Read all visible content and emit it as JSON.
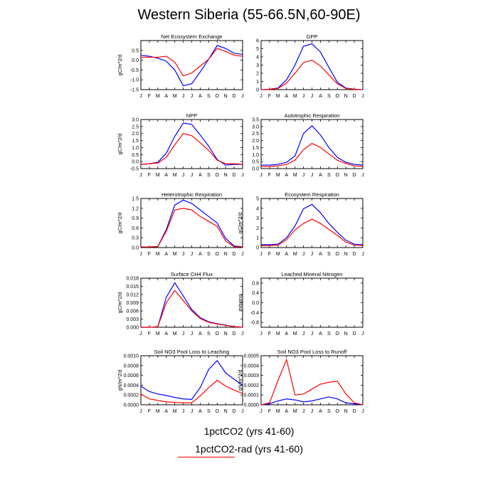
{
  "figure": {
    "title": "Western Siberia (55-66.5N,60-90E)",
    "legend": [
      {
        "label": "1pctCO2 (yrs 41-60)",
        "color": "#0000ff"
      },
      {
        "label": "1pctCO2-rad (yrs 41-60)",
        "color": "#ff0000"
      }
    ]
  },
  "chart_data": [
    {
      "type": "line",
      "title": "Net Ecosystem Exchange",
      "ylabel": "gC/m^2/d",
      "categories": [
        "J",
        "F",
        "M",
        "A",
        "M",
        "J",
        "J",
        "A",
        "S",
        "O",
        "N",
        "D",
        "J"
      ],
      "ylim": [
        -1.5,
        1.0
      ],
      "yticks": [
        -1.5,
        -1.0,
        -0.5,
        0.0,
        0.5
      ],
      "series": [
        {
          "values": [
            0.25,
            0.2,
            0.1,
            -0.05,
            -0.5,
            -1.3,
            -1.2,
            -0.6,
            0.05,
            0.75,
            0.6,
            0.35,
            0.3
          ]
        },
        {
          "values": [
            0.15,
            0.15,
            0.15,
            0.2,
            -0.1,
            -0.8,
            -0.65,
            -0.3,
            0.05,
            0.6,
            0.45,
            0.25,
            0.2
          ]
        }
      ]
    },
    {
      "type": "line",
      "title": "GPP",
      "ylabel": "",
      "categories": [
        "J",
        "F",
        "M",
        "A",
        "M",
        "J",
        "J",
        "A",
        "S",
        "O",
        "N",
        "D",
        "J"
      ],
      "ylim": [
        0,
        6
      ],
      "yticks": [
        0.0,
        1.0,
        2.0,
        3.0,
        4.0,
        5.0,
        6.0
      ],
      "series": [
        {
          "values": [
            0.0,
            0.05,
            0.2,
            1.2,
            3.0,
            5.3,
            5.6,
            4.6,
            2.7,
            0.9,
            0.2,
            0.05,
            0.0
          ]
        },
        {
          "values": [
            0.0,
            0.05,
            0.15,
            0.8,
            2.0,
            3.3,
            3.6,
            2.9,
            1.8,
            0.7,
            0.15,
            0.05,
            0.0
          ]
        }
      ]
    },
    {
      "type": "line",
      "title": "NPP",
      "ylabel": "gC/m^2/d",
      "categories": [
        "J",
        "F",
        "M",
        "A",
        "M",
        "J",
        "J",
        "A",
        "S",
        "O",
        "N",
        "D",
        "J"
      ],
      "ylim": [
        -0.5,
        3.0
      ],
      "yticks": [
        -0.5,
        0.0,
        0.5,
        1.0,
        1.5,
        2.0,
        2.5,
        3.0
      ],
      "series": [
        {
          "values": [
            -0.2,
            -0.15,
            -0.05,
            0.6,
            1.8,
            2.75,
            2.65,
            1.9,
            1.1,
            0.15,
            -0.25,
            -0.2,
            -0.2
          ]
        },
        {
          "values": [
            -0.2,
            -0.15,
            -0.1,
            0.3,
            1.2,
            2.0,
            1.85,
            1.35,
            0.8,
            0.1,
            -0.15,
            -0.15,
            -0.2
          ]
        }
      ]
    },
    {
      "type": "line",
      "title": "Autotrophic Respiration",
      "ylabel": "",
      "categories": [
        "J",
        "F",
        "M",
        "A",
        "M",
        "J",
        "J",
        "A",
        "S",
        "O",
        "N",
        "D",
        "J"
      ],
      "ylim": [
        0,
        3.5
      ],
      "yticks": [
        0.0,
        0.5,
        1.0,
        1.5,
        2.0,
        2.5,
        3.0,
        3.5
      ],
      "series": [
        {
          "values": [
            0.25,
            0.25,
            0.3,
            0.45,
            0.9,
            2.5,
            3.05,
            2.4,
            1.5,
            0.8,
            0.45,
            0.3,
            0.25
          ]
        },
        {
          "values": [
            0.15,
            0.15,
            0.2,
            0.3,
            0.6,
            1.35,
            1.8,
            1.5,
            1.05,
            0.6,
            0.35,
            0.2,
            0.15
          ]
        }
      ]
    },
    {
      "type": "line",
      "title": "Heterotrophic Respiration",
      "ylabel": "gC/m^2/d",
      "categories": [
        "J",
        "F",
        "M",
        "A",
        "M",
        "J",
        "J",
        "A",
        "S",
        "O",
        "N",
        "D",
        "J"
      ],
      "ylim": [
        0,
        1.5
      ],
      "yticks": [
        0.0,
        0.3,
        0.6,
        0.9,
        1.2,
        1.5
      ],
      "series": [
        {
          "values": [
            0.02,
            0.02,
            0.03,
            0.55,
            1.3,
            1.45,
            1.35,
            1.15,
            0.95,
            0.75,
            0.28,
            0.05,
            0.02
          ]
        },
        {
          "values": [
            0.02,
            0.02,
            0.03,
            0.5,
            1.15,
            1.2,
            1.15,
            0.95,
            0.8,
            0.65,
            0.2,
            0.03,
            0.02
          ]
        }
      ]
    },
    {
      "type": "line",
      "title": "Ecosystem Respiration",
      "ylabel": "gC/m^2/d",
      "categories": [
        "J",
        "F",
        "M",
        "A",
        "M",
        "J",
        "J",
        "A",
        "S",
        "O",
        "N",
        "D",
        "J"
      ],
      "ylim": [
        0,
        5
      ],
      "yticks": [
        0.0,
        1.0,
        2.0,
        3.0,
        4.0,
        5.0
      ],
      "series": [
        {
          "values": [
            0.3,
            0.3,
            0.35,
            1.0,
            2.2,
            3.95,
            4.4,
            3.55,
            2.45,
            1.55,
            0.75,
            0.35,
            0.3
          ]
        },
        {
          "values": [
            0.2,
            0.2,
            0.25,
            0.8,
            1.8,
            2.45,
            2.9,
            2.45,
            1.85,
            1.25,
            0.55,
            0.25,
            0.2
          ]
        }
      ]
    },
    {
      "type": "line",
      "title": "Surface CH4 Flux",
      "ylabel": "gC/m^2/d",
      "categories": [
        "J",
        "F",
        "M",
        "A",
        "M",
        "J",
        "J",
        "A",
        "S",
        "O",
        "N",
        "D",
        "J"
      ],
      "ylim": [
        0,
        0.018
      ],
      "yticks": [
        0.0,
        0.003,
        0.006,
        0.009,
        0.012,
        0.015,
        0.018
      ],
      "series": [
        {
          "values": [
            0,
            0,
            0.0002,
            0.011,
            0.0163,
            0.0115,
            0.0065,
            0.0035,
            0.002,
            0.0013,
            0.0008,
            0.0002,
            0
          ]
        },
        {
          "values": [
            0,
            0,
            0.0002,
            0.009,
            0.0135,
            0.0098,
            0.006,
            0.0032,
            0.0018,
            0.0012,
            0.0007,
            0.0002,
            0
          ]
        }
      ]
    },
    {
      "type": "line",
      "title": "Leached Mineral Nitrogen",
      "ylabel": "missing",
      "categories": [
        "J",
        "F",
        "M",
        "A",
        "M",
        "J",
        "J",
        "A",
        "S",
        "O",
        "N",
        "D",
        "J"
      ],
      "ylim": [
        -1,
        1
      ],
      "yticks": [
        -0.8,
        -0.4,
        0.0,
        0.4,
        0.8
      ],
      "series": []
    },
    {
      "type": "line",
      "title": "Soil NO3 Pool Loss to Leaching",
      "ylabel": "gN/m^2/d",
      "categories": [
        "J",
        "F",
        "M",
        "A",
        "M",
        "J",
        "J",
        "A",
        "S",
        "O",
        "N",
        "D",
        "J"
      ],
      "ylim": [
        0,
        0.001
      ],
      "yticks": [
        0.0,
        0.0002,
        0.0004,
        0.0006,
        0.0008,
        0.001
      ],
      "series": [
        {
          "values": [
            0.00038,
            0.00027,
            0.00022,
            0.00019,
            0.00015,
            0.00012,
            0.00011,
            0.00035,
            0.00072,
            0.0009,
            0.00065,
            0.00052,
            0.0004
          ]
        },
        {
          "values": [
            0.00022,
            0.00012,
            9e-05,
            6e-05,
            5e-05,
            4e-05,
            4e-05,
            0.00018,
            0.00035,
            0.0005,
            0.00038,
            0.0003,
            0.00023
          ]
        }
      ]
    },
    {
      "type": "line",
      "title": "Soil NO3 Pool Loss to Runoff",
      "ylabel": "gN/m^2/d",
      "categories": [
        "J",
        "F",
        "M",
        "A",
        "M",
        "J",
        "J",
        "A",
        "S",
        "O",
        "N",
        "D",
        "J"
      ],
      "ylim": [
        0,
        0.0005
      ],
      "yticks": [
        0.0,
        0.0001,
        0.0002,
        0.0003,
        0.0004,
        0.0005
      ],
      "series": [
        {
          "values": [
            0,
            1e-05,
            4e-05,
            6e-05,
            5e-05,
            3e-05,
            4e-05,
            6e-05,
            8e-05,
            6e-05,
            2e-05,
            1e-05,
            0
          ]
        },
        {
          "values": [
            0,
            2e-05,
            0.00025,
            0.00046,
            0.0001,
            0.00011,
            0.00016,
            0.00021,
            0.00023,
            0.00024,
            0.00011,
            2e-05,
            0
          ]
        }
      ]
    }
  ]
}
